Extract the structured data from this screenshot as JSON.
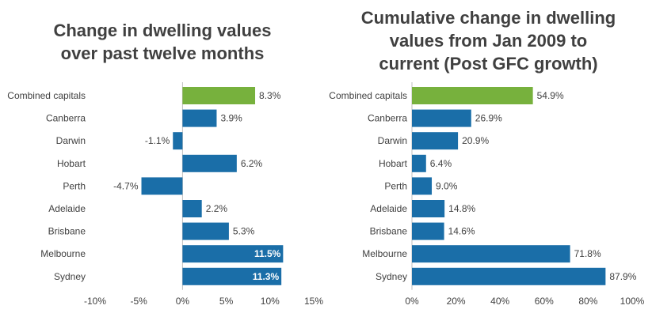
{
  "chart_data": [
    {
      "type": "bar",
      "orientation": "horizontal",
      "title_lines": [
        "Change in dwelling values",
        "over past twelve months"
      ],
      "categories": [
        "Combined capitals",
        "Canberra",
        "Darwin",
        "Hobart",
        "Perth",
        "Adelaide",
        "Brisbane",
        "Melbourne",
        "Sydney"
      ],
      "values": [
        8.3,
        3.9,
        -1.1,
        6.2,
        -4.7,
        2.2,
        5.3,
        11.5,
        11.3
      ],
      "value_labels": [
        "8.3%",
        "3.9%",
        "-1.1%",
        "6.2%",
        "-4.7%",
        "2.2%",
        "5.3%",
        "11.5%",
        "11.3%"
      ],
      "xlim": [
        -10,
        15
      ],
      "ticks": [
        -10,
        -5,
        0,
        5,
        10,
        15
      ],
      "tick_labels": [
        "-10%",
        "-5%",
        "0%",
        "5%",
        "10%",
        "15%"
      ],
      "colors": {
        "highlight": "#77B13D",
        "bar": "#1A6EA8",
        "label": "#404040",
        "inside_label": "#ffffff"
      },
      "highlight_index": 0,
      "labels_inside": [
        7,
        8
      ]
    },
    {
      "type": "bar",
      "orientation": "horizontal",
      "title_lines": [
        "Cumulative change in dwelling",
        "values from Jan 2009 to",
        "current (Post GFC growth)"
      ],
      "categories": [
        "Combined capitals",
        "Canberra",
        "Darwin",
        "Hobart",
        "Perth",
        "Adelaide",
        "Brisbane",
        "Melbourne",
        "Sydney"
      ],
      "values": [
        54.9,
        26.9,
        20.9,
        6.4,
        9.0,
        14.8,
        14.6,
        71.8,
        87.9
      ],
      "value_labels": [
        "54.9%",
        "26.9%",
        "20.9%",
        "6.4%",
        "9.0%",
        "14.8%",
        "14.6%",
        "71.8%",
        "87.9%"
      ],
      "xlim": [
        0,
        100
      ],
      "ticks": [
        0,
        20,
        40,
        60,
        80,
        100
      ],
      "tick_labels": [
        "0%",
        "20%",
        "40%",
        "60%",
        "80%",
        "100%"
      ],
      "colors": {
        "highlight": "#77B13D",
        "bar": "#1A6EA8",
        "label": "#404040",
        "inside_label": "#ffffff"
      },
      "highlight_index": 0,
      "labels_inside": []
    }
  ]
}
